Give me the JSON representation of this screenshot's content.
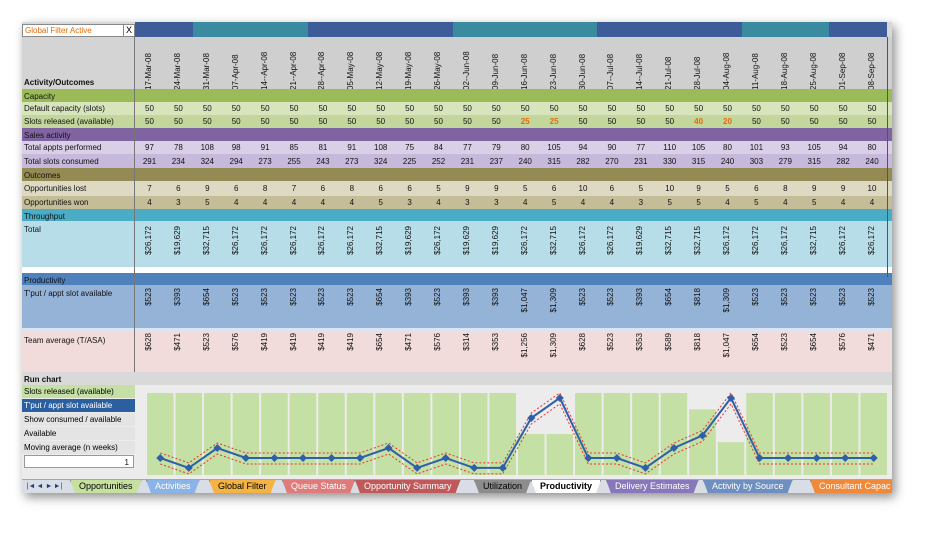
{
  "filter": {
    "label": "Global Filter Active",
    "close": "X"
  },
  "header_label": "Activity/Outcomes",
  "dates": [
    "17-Mar-08",
    "24-Mar-08",
    "31-Mar-08",
    "07-Apr-08",
    "14--Apr-08",
    "21--Apr-08",
    "28--Apr-08",
    "05-May-08",
    "12-May-08",
    "19-May-08",
    "26-May-08",
    "02--Jun-08",
    "09-Jun-08",
    "16-Jun-08",
    "23-Jun-08",
    "30-Jun-08",
    "07--Jul-08",
    "14--Jul-08",
    "21-Jul-08",
    "28-Jul-08",
    "04-Aug-08",
    "11-Aug-08",
    "18-Aug-08",
    "25-Aug-08",
    "01-Sep-08",
    "08-Sep-08"
  ],
  "sections": {
    "capacity": "Capacity",
    "sales": "Sales activity",
    "outcomes": "Outcomes",
    "throughput": "Throughput",
    "productivity": "Productivity",
    "run_chart": "Run chart"
  },
  "rows": {
    "default_capacity": {
      "label": "Default capacity (slots)",
      "values": [
        "50",
        "50",
        "50",
        "50",
        "50",
        "50",
        "50",
        "50",
        "50",
        "50",
        "50",
        "50",
        "50",
        "50",
        "50",
        "50",
        "50",
        "50",
        "50",
        "50",
        "50",
        "50",
        "50",
        "50",
        "50",
        "50"
      ]
    },
    "slots_released": {
      "label": "Slots released (available)",
      "values": [
        "50",
        "50",
        "50",
        "50",
        "50",
        "50",
        "50",
        "50",
        "50",
        "50",
        "50",
        "50",
        "50",
        "25",
        "25",
        "50",
        "50",
        "50",
        "50",
        "40",
        "20",
        "50",
        "50",
        "50",
        "50",
        "50"
      ],
      "highlight": [
        13,
        14,
        19,
        20
      ]
    },
    "total_appts": {
      "label": "Total appts performed",
      "values": [
        "97",
        "78",
        "108",
        "98",
        "91",
        "85",
        "81",
        "91",
        "108",
        "75",
        "84",
        "77",
        "79",
        "80",
        "105",
        "94",
        "90",
        "77",
        "110",
        "105",
        "80",
        "101",
        "93",
        "105",
        "94",
        "80"
      ]
    },
    "total_slots": {
      "label": "Total slots consumed",
      "values": [
        "291",
        "234",
        "324",
        "294",
        "273",
        "255",
        "243",
        "273",
        "324",
        "225",
        "252",
        "231",
        "237",
        "240",
        "315",
        "282",
        "270",
        "231",
        "330",
        "315",
        "240",
        "303",
        "279",
        "315",
        "282",
        "240"
      ]
    },
    "opp_lost": {
      "label": "Opportunities lost",
      "values": [
        "7",
        "6",
        "9",
        "6",
        "8",
        "7",
        "6",
        "8",
        "6",
        "6",
        "5",
        "9",
        "9",
        "5",
        "6",
        "10",
        "6",
        "5",
        "10",
        "9",
        "5",
        "6",
        "8",
        "9",
        "9",
        "10"
      ]
    },
    "opp_won": {
      "label": "Opportunities won",
      "values": [
        "4",
        "3",
        "5",
        "4",
        "4",
        "4",
        "4",
        "4",
        "5",
        "3",
        "4",
        "3",
        "3",
        "4",
        "5",
        "4",
        "4",
        "3",
        "5",
        "5",
        "4",
        "5",
        "4",
        "5",
        "4",
        "4"
      ]
    },
    "total": {
      "label": "Total",
      "values": [
        "$26,172",
        "$19,629",
        "$32,715",
        "$26,172",
        "$26,172",
        "$26,172",
        "$26,172",
        "$26,172",
        "$32,715",
        "$19,629",
        "$26,172",
        "$19,629",
        "$19,629",
        "$26,172",
        "$32,715",
        "$26,172",
        "$26,172",
        "$19,629",
        "$32,715",
        "$32,715",
        "$26,172",
        "$26,172",
        "$26,172",
        "$32,715",
        "$26,172",
        "$26,172"
      ]
    },
    "tput_slot": {
      "label": "T'put / appt slot available",
      "values": [
        "$523",
        "$393",
        "$654",
        "$523",
        "$523",
        "$523",
        "$523",
        "$523",
        "$654",
        "$393",
        "$523",
        "$393",
        "$393",
        "$1,047",
        "$1,309",
        "$523",
        "$523",
        "$393",
        "$654",
        "$818",
        "$1,309",
        "$523",
        "$523",
        "$523",
        "$523",
        "$523"
      ]
    },
    "team_avg": {
      "label": "Team average (T/ASA)",
      "values": [
        "$628",
        "$471",
        "$523",
        "$576",
        "$419",
        "$419",
        "$419",
        "$419",
        "$654",
        "$471",
        "$576",
        "$314",
        "$353",
        "$1,256",
        "$1,309",
        "$628",
        "$523",
        "$353",
        "$589",
        "$818",
        "$1,047",
        "$654",
        "$523",
        "$654",
        "$576",
        "$471"
      ]
    }
  },
  "run_chart_legend": {
    "slots_released": "Slots released (available)",
    "tput": "T'put / appt slot available",
    "show_consumed": "Show consumed / available",
    "available": "Available",
    "moving_avg": "Moving average (n weeks)",
    "moving_avg_value": "1"
  },
  "chart_data": {
    "type": "bar",
    "categories": [
      "17-Mar-08",
      "24-Mar-08",
      "31-Mar-08",
      "07-Apr-08",
      "14--Apr-08",
      "21--Apr-08",
      "28--Apr-08",
      "05-May-08",
      "12-May-08",
      "19-May-08",
      "26-May-08",
      "02--Jun-08",
      "09-Jun-08",
      "16-Jun-08",
      "23-Jun-08",
      "30-Jun-08",
      "07--Jul-08",
      "14--Jul-08",
      "21-Jul-08",
      "28-Jul-08",
      "04-Aug-08",
      "11-Aug-08",
      "18-Aug-08",
      "25-Aug-08",
      "01-Sep-08",
      "08-Sep-08"
    ],
    "series": [
      {
        "name": "Slots released (available)",
        "type": "bar",
        "values": [
          50,
          50,
          50,
          50,
          50,
          50,
          50,
          50,
          50,
          50,
          50,
          50,
          50,
          25,
          25,
          50,
          50,
          50,
          50,
          40,
          20,
          50,
          50,
          50,
          50,
          50
        ]
      },
      {
        "name": "T'put / appt slot available",
        "type": "line",
        "values": [
          523,
          393,
          654,
          523,
          523,
          523,
          523,
          523,
          654,
          393,
          523,
          393,
          393,
          1047,
          1309,
          523,
          523,
          393,
          654,
          818,
          1309,
          523,
          523,
          523,
          523,
          523
        ]
      }
    ],
    "colors": {
      "bars": "#c4e0a4",
      "line": "#2e5fa8",
      "band": "#e8342c"
    }
  },
  "tabs": [
    {
      "label": "Opportunities",
      "color": "#c6e0a0",
      "active": false
    },
    {
      "label": "Activities",
      "color": "#8ab4e8",
      "active": false
    },
    {
      "label": "Global Filter",
      "color": "#f4b342",
      "active": false
    },
    {
      "label": "Queue Status",
      "color": "#e07b7b",
      "active": false
    },
    {
      "label": "Opportunity Summary",
      "color": "#c05a5a",
      "active": false
    },
    {
      "label": "Utilization",
      "color": "#8c8c8c",
      "active": false
    },
    {
      "label": "Productivity",
      "color": "#ffffff",
      "active": true
    },
    {
      "label": "Delivery Estimates",
      "color": "#8877bb",
      "active": false
    },
    {
      "label": "Activity by Source",
      "color": "#6f8fc0",
      "active": false
    },
    {
      "label": "Consultant Capac",
      "color": "#f08a3a",
      "active": false
    }
  ],
  "nav": [
    "|◄",
    "◄",
    "►",
    "►|"
  ]
}
